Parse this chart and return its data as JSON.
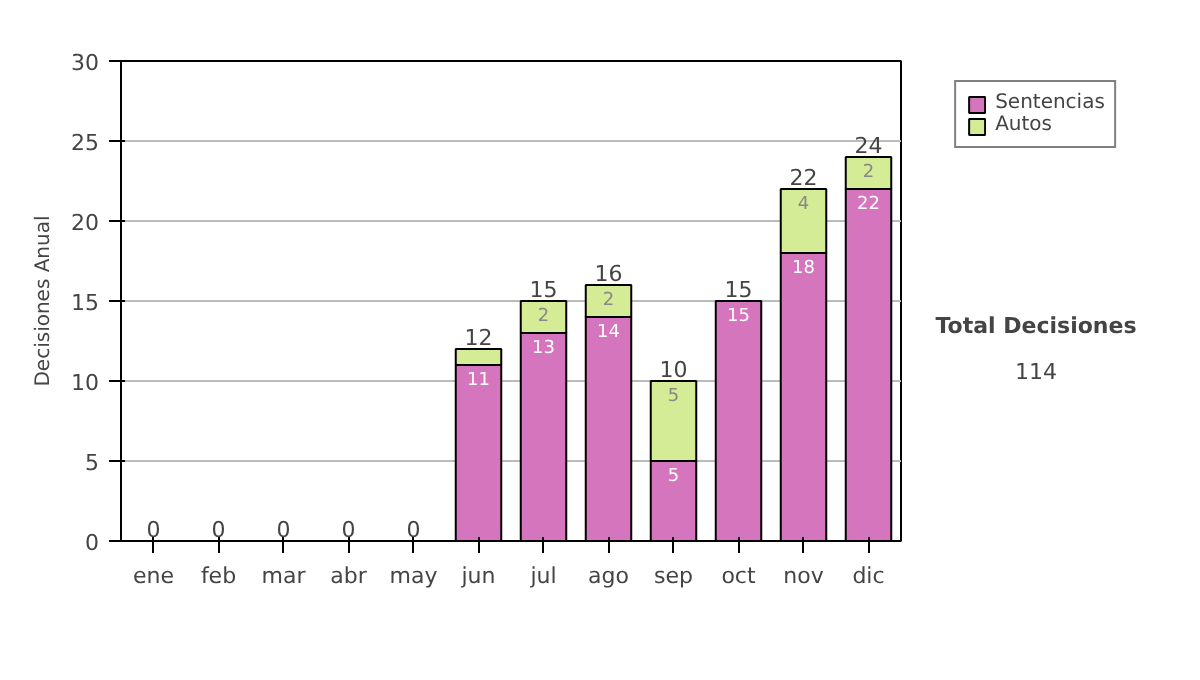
{
  "chart_data": {
    "type": "bar",
    "stacked": true,
    "ylabel": "Decisiones Anual",
    "categories": [
      "ene",
      "feb",
      "mar",
      "abr",
      "may",
      "jun",
      "jul",
      "ago",
      "sep",
      "oct",
      "nov",
      "dic"
    ],
    "series": [
      {
        "name": "Sentencias",
        "color": "#d575bd",
        "values": [
          0,
          0,
          0,
          0,
          0,
          11,
          13,
          14,
          5,
          15,
          18,
          22
        ],
        "value_labels": [
          null,
          null,
          null,
          null,
          null,
          "11",
          "13",
          "14",
          "5",
          "15",
          "18",
          "22"
        ]
      },
      {
        "name": "Autos",
        "color": "#d4ec96",
        "values": [
          0,
          0,
          0,
          0,
          0,
          1,
          2,
          2,
          5,
          0,
          4,
          2
        ],
        "value_labels": [
          null,
          null,
          null,
          null,
          null,
          null,
          "2",
          "2",
          "5",
          null,
          "4",
          "2"
        ]
      }
    ],
    "totals": [
      "0",
      "0",
      "0",
      "0",
      "0",
      "12",
      "15",
      "16",
      "10",
      "15",
      "22",
      "24"
    ],
    "ylim": [
      0,
      30
    ],
    "yticks": [
      0,
      5,
      10,
      15,
      20,
      25,
      30
    ],
    "grid": "y",
    "legend": "right",
    "annotations": [
      "Total Decisiones",
      "114"
    ]
  }
}
